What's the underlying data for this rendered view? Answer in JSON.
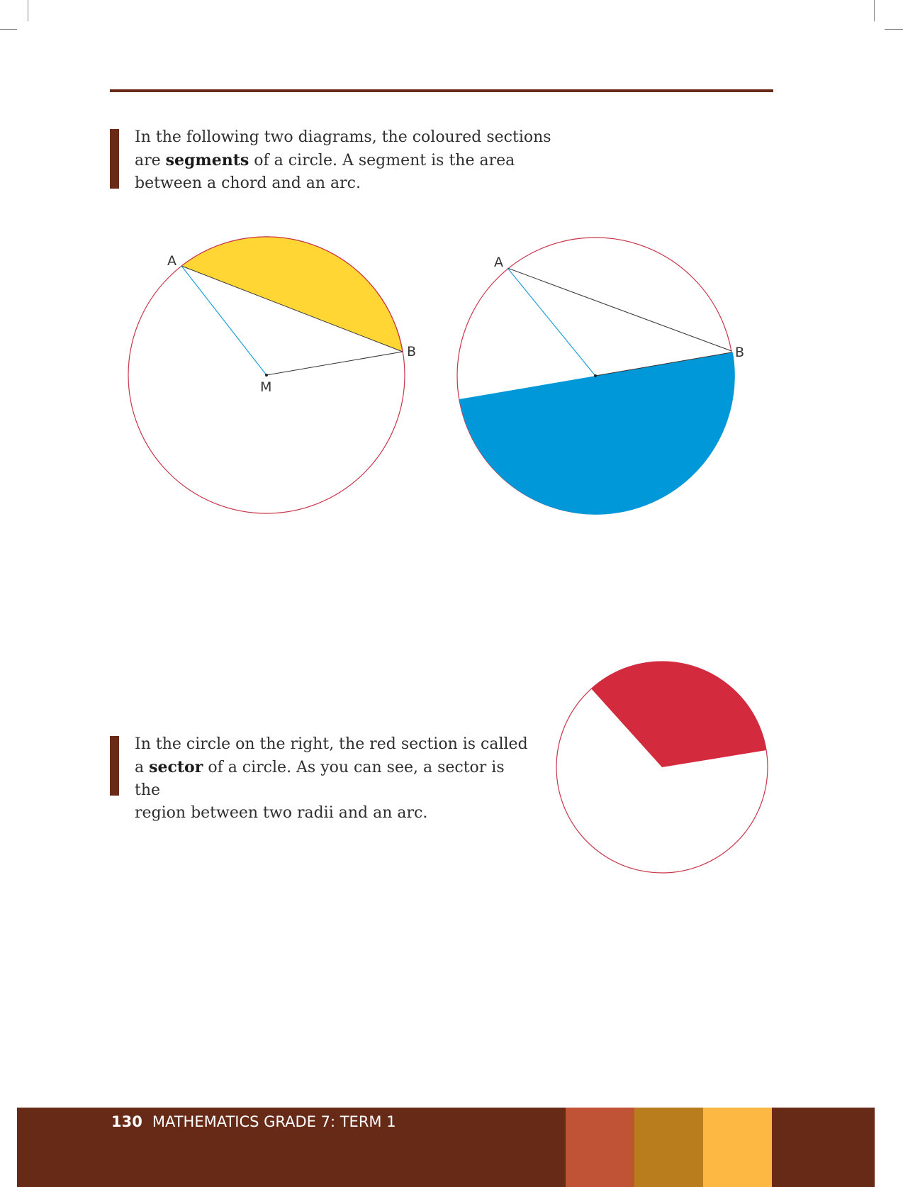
{
  "intro": {
    "line1": "In the following two diagrams, the coloured sections",
    "line2_before": "are ",
    "line2_bold": "segments",
    "line2_after": " of a circle. A segment is the area",
    "line3": "between a chord and an arc."
  },
  "diagram1": {
    "label_a": "A",
    "label_b": "B",
    "label_m": "M"
  },
  "diagram2": {
    "label_a": "A",
    "label_b": "B"
  },
  "sector_text": {
    "line1": "In the circle on the right, the red section is called",
    "line2_before": "a ",
    "line2_bold": "sector",
    "line2_after": " of a circle. As you can see, a sector is the",
    "line3": "region between two radii and an arc."
  },
  "footer": {
    "page_number": "130",
    "title": "MATHEMATICS GRADE 7: TERM 1"
  },
  "colors": {
    "brown": "#662a16",
    "yellow_segment": "#ffd633",
    "blue_segment": "#0098d8",
    "red_sector": "#d42a3e",
    "circle_outline": "#c8364a",
    "swatch_1": "#c05235",
    "swatch_2": "#ba7d1d",
    "swatch_3": "#fdb844"
  }
}
